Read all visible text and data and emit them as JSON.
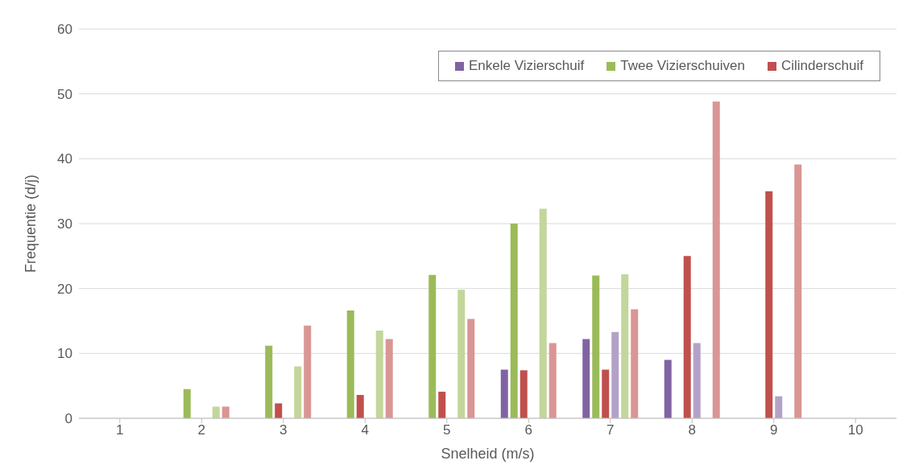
{
  "chart_data": {
    "type": "bar",
    "xlabel": "Snelheid (m/s)",
    "ylabel": "Frequentie (d/j)",
    "categories": [
      "1",
      "2",
      "3",
      "4",
      "5",
      "6",
      "7",
      "8",
      "9",
      "10"
    ],
    "series": [
      {
        "name": "Enkele Vizierschuif",
        "color": "#8064a2",
        "values": [
          null,
          null,
          null,
          null,
          null,
          7.5,
          12.2,
          9.0,
          null,
          null
        ]
      },
      {
        "name": "Twee Vizierschuiven",
        "color": "#9bbb59",
        "values": [
          null,
          4.5,
          11.2,
          16.6,
          22.1,
          30.0,
          22.0,
          null,
          null,
          null
        ]
      },
      {
        "name": "Cilinderschuif",
        "color": "#c0504d",
        "values": [
          null,
          null,
          2.3,
          3.6,
          4.1,
          7.4,
          7.5,
          25.0,
          35.0,
          null
        ]
      },
      {
        "color": "#b3a2c7",
        "values": [
          null,
          null,
          null,
          null,
          null,
          null,
          13.3,
          11.6,
          3.4,
          null
        ]
      },
      {
        "color": "#c3d69b",
        "values": [
          null,
          1.8,
          8.0,
          13.5,
          19.8,
          32.3,
          22.2,
          null,
          null,
          null
        ]
      },
      {
        "color": "#d99694",
        "values": [
          null,
          1.8,
          14.3,
          12.2,
          15.3,
          11.6,
          16.8,
          48.8,
          39.1,
          null
        ]
      }
    ],
    "ylim": [
      0,
      60
    ],
    "yticks": [
      0,
      10,
      20,
      30,
      40,
      50,
      60
    ],
    "grid": "y",
    "legend": "top right"
  }
}
